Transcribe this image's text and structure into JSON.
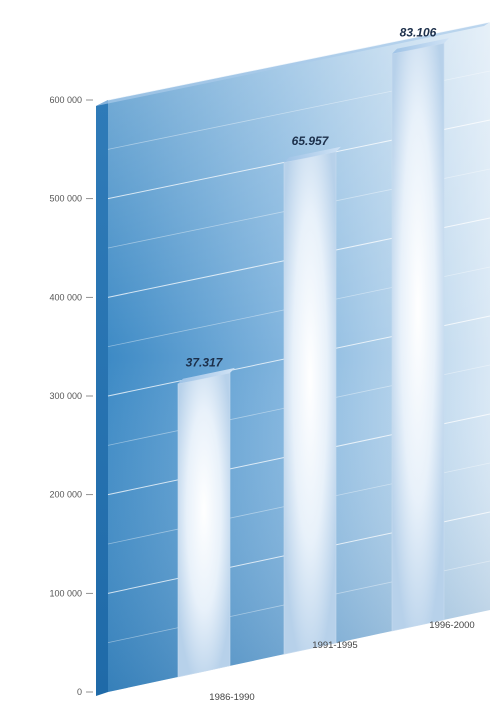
{
  "chart_data": {
    "type": "bar",
    "title": "",
    "xlabel": "",
    "ylabel": "",
    "categories": [
      "1986-1990",
      "1991-1995",
      "1996-2000"
    ],
    "values": [
      297500,
      500000,
      588000
    ],
    "data_labels": [
      "37.317",
      "65.957",
      "83.106"
    ],
    "ylim": [
      0,
      600000
    ],
    "yticks": [
      0,
      100000,
      200000,
      300000,
      400000,
      500000,
      600000
    ],
    "ytick_labels": [
      "0",
      "100 000",
      "200 000",
      "300 000",
      "400 000",
      "500 000",
      "600 000"
    ],
    "grid": true,
    "legend": "none",
    "colors": {
      "wall_dark": "#3a87c2",
      "wall_light": "#cfe2f3",
      "bar_light": "#ffffff",
      "bar_edge": "#b9d2ea"
    }
  }
}
